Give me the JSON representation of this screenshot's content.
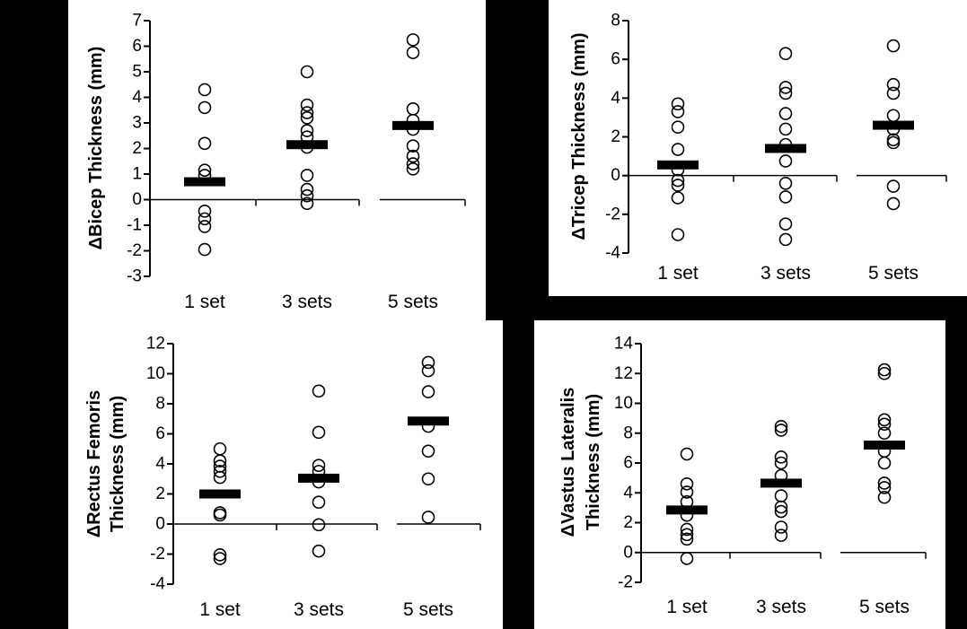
{
  "figure": {
    "background": "#000000",
    "panel_background": "#ffffff",
    "marker_color": "#000000",
    "mean_bar_color": "#000000"
  },
  "chart_data": [
    {
      "id": "bicep",
      "type": "scatter",
      "title_lines": [
        "ΔBicep Thickness (mm)"
      ],
      "categories": [
        "1 set",
        "3 sets",
        "5 sets"
      ],
      "ylim": [
        -3,
        7
      ],
      "ytick_step": 1,
      "grid": false,
      "marker": "open-circle",
      "legend": "none",
      "series": [
        {
          "name": "1 set",
          "points": [
            4.3,
            3.6,
            2.2,
            1.15,
            0.95,
            -0.45,
            -0.75,
            -1.05,
            -1.95
          ],
          "mean": 0.7
        },
        {
          "name": "3 sets",
          "points": [
            5.0,
            3.7,
            3.4,
            3.2,
            2.7,
            2.45,
            2.05,
            0.95,
            0.4,
            0.15,
            -0.15
          ],
          "mean": 2.15
        },
        {
          "name": "5 sets",
          "points": [
            6.25,
            5.75,
            3.55,
            3.1,
            2.75,
            2.1,
            1.7,
            1.4,
            1.2
          ],
          "mean": 2.9
        }
      ]
    },
    {
      "id": "tricep",
      "type": "scatter",
      "title_lines": [
        "ΔTricep Thickness (mm)"
      ],
      "categories": [
        "1 set",
        "3 sets",
        "5 sets"
      ],
      "ylim": [
        -4,
        8
      ],
      "ytick_step": 2,
      "grid": false,
      "marker": "open-circle",
      "legend": "none",
      "series": [
        {
          "name": "1 set",
          "points": [
            3.7,
            3.3,
            2.5,
            1.35,
            0.3,
            -0.25,
            -0.5,
            -1.15,
            -3.05
          ],
          "mean": 0.55
        },
        {
          "name": "3 sets",
          "points": [
            6.3,
            4.55,
            4.25,
            3.2,
            2.4,
            1.6,
            0.75,
            -0.4,
            -1.1,
            -2.5,
            -3.3
          ],
          "mean": 1.4
        },
        {
          "name": "5 sets",
          "points": [
            6.7,
            4.7,
            4.25,
            3.1,
            2.4,
            1.85,
            1.7,
            -0.55,
            -1.45
          ],
          "mean": 2.6
        }
      ]
    },
    {
      "id": "rectus-femoris",
      "type": "scatter",
      "title_lines": [
        "ΔRectus Femoris",
        "Thickness (mm)"
      ],
      "categories": [
        "1 set",
        "3 sets",
        "5 sets"
      ],
      "ylim": [
        -4,
        12
      ],
      "ytick_step": 2,
      "grid": false,
      "marker": "open-circle",
      "legend": "none",
      "series": [
        {
          "name": "1 set",
          "points": [
            5.0,
            4.2,
            3.85,
            3.5,
            3.1,
            0.75,
            0.6,
            -2.05,
            -2.3
          ],
          "mean": 2.0
        },
        {
          "name": "3 sets",
          "points": [
            8.85,
            6.1,
            3.9,
            3.5,
            2.8,
            1.45,
            -0.05,
            -1.8
          ],
          "mean": 3.05
        },
        {
          "name": "5 sets",
          "points": [
            10.75,
            10.2,
            8.8,
            6.5,
            4.85,
            3.0,
            0.45
          ],
          "mean": 6.85
        }
      ]
    },
    {
      "id": "vastus-lateralis",
      "type": "scatter",
      "title_lines": [
        "ΔVastus Lateralis",
        "Thickness (mm)"
      ],
      "categories": [
        "1 set",
        "3 sets",
        "5 sets"
      ],
      "ylim": [
        -2,
        14
      ],
      "ytick_step": 2,
      "grid": false,
      "marker": "open-circle",
      "legend": "none",
      "series": [
        {
          "name": "1 set",
          "points": [
            6.6,
            4.6,
            4.05,
            3.4,
            2.5,
            1.55,
            1.2,
            0.9,
            -0.4
          ],
          "mean": 2.85
        },
        {
          "name": "3 sets",
          "points": [
            8.45,
            8.2,
            6.4,
            6.0,
            5.15,
            3.8,
            3.05,
            2.75,
            1.7,
            1.15
          ],
          "mean": 4.65
        },
        {
          "name": "5 sets",
          "points": [
            12.25,
            12.0,
            8.9,
            8.6,
            8.0,
            6.8,
            6.0,
            4.65,
            4.35,
            3.7
          ],
          "mean": 7.2
        }
      ]
    }
  ]
}
